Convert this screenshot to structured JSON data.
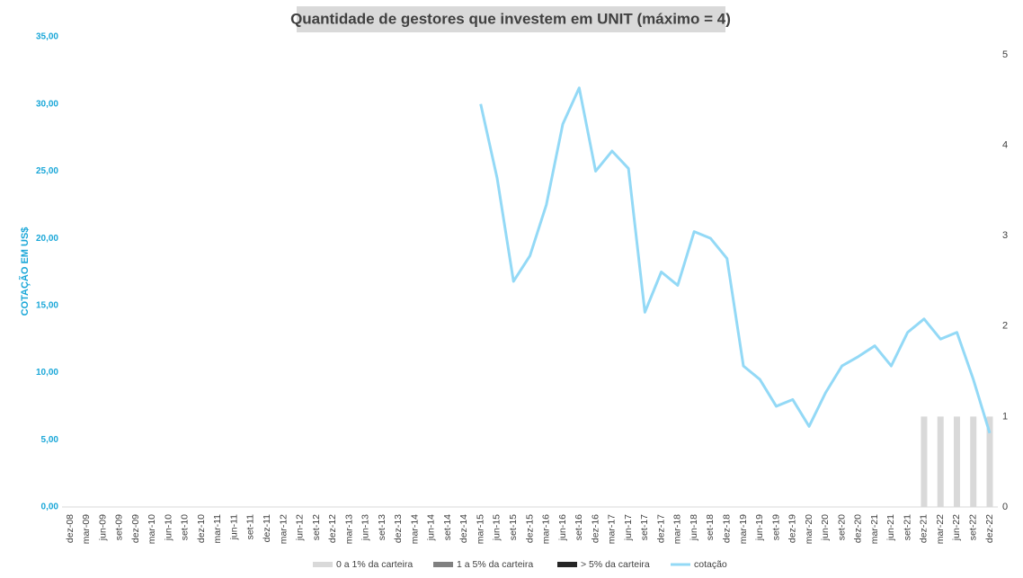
{
  "chart_data": {
    "type": "bar",
    "title": "Quantidade de gestores que investem em UNIT (máximo = 4)",
    "y_label": "COTAÇÃO EM US$",
    "categories": [
      "dez-08",
      "mar-09",
      "jun-09",
      "set-09",
      "dez-09",
      "mar-10",
      "jun-10",
      "set-10",
      "dez-10",
      "mar-11",
      "jun-11",
      "set-11",
      "dez-11",
      "mar-12",
      "jun-12",
      "set-12",
      "dez-12",
      "mar-13",
      "jun-13",
      "set-13",
      "dez-13",
      "mar-14",
      "jun-14",
      "set-14",
      "dez-14",
      "mar-15",
      "jun-15",
      "set-15",
      "dez-15",
      "mar-16",
      "jun-16",
      "set-16",
      "dez-16",
      "mar-17",
      "jun-17",
      "set-17",
      "dez-17",
      "mar-18",
      "jun-18",
      "set-18",
      "dez-18",
      "mar-19",
      "jun-19",
      "set-19",
      "dez-19",
      "mar-20",
      "jun-20",
      "set-20",
      "dez-20",
      "mar-21",
      "jun-21",
      "set-21",
      "dez-21",
      "mar-22",
      "jun-22",
      "set-22",
      "dez-22"
    ],
    "series": [
      {
        "name": "0 a 1% da carteira",
        "color": "#d9d9d9",
        "axis": "y2",
        "values": [
          null,
          null,
          null,
          null,
          null,
          null,
          null,
          null,
          null,
          null,
          null,
          null,
          null,
          null,
          null,
          null,
          null,
          null,
          null,
          null,
          null,
          null,
          null,
          null,
          null,
          null,
          null,
          null,
          null,
          null,
          null,
          null,
          null,
          null,
          null,
          null,
          null,
          null,
          null,
          null,
          null,
          null,
          null,
          null,
          null,
          null,
          null,
          null,
          null,
          null,
          null,
          null,
          1,
          1,
          1,
          1,
          1
        ]
      },
      {
        "name": "1 a 5% da carteira",
        "color": "#808080",
        "axis": "y2",
        "values": [
          null,
          null,
          null,
          null,
          null,
          null,
          null,
          null,
          null,
          null,
          null,
          null,
          null,
          null,
          null,
          null,
          null,
          null,
          null,
          null,
          null,
          null,
          null,
          null,
          null,
          null,
          null,
          null,
          null,
          null,
          null,
          null,
          null,
          null,
          null,
          null,
          null,
          null,
          null,
          null,
          null,
          null,
          null,
          null,
          null,
          null,
          null,
          null,
          null,
          null,
          null,
          null,
          null,
          null,
          null,
          null,
          null
        ]
      },
      {
        "name": "> 5% da carteira",
        "color": "#262626",
        "axis": "y2",
        "values": [
          null,
          null,
          null,
          null,
          null,
          null,
          null,
          null,
          null,
          null,
          null,
          null,
          null,
          null,
          null,
          null,
          null,
          null,
          null,
          null,
          null,
          null,
          null,
          null,
          null,
          null,
          null,
          null,
          null,
          null,
          null,
          null,
          null,
          null,
          null,
          null,
          null,
          null,
          null,
          null,
          null,
          null,
          null,
          null,
          null,
          null,
          null,
          null,
          null,
          null,
          null,
          null,
          null,
          null,
          null,
          null,
          null
        ]
      },
      {
        "name": "cotação",
        "color": "#93d9f6",
        "type": "line",
        "values": [
          null,
          null,
          null,
          null,
          null,
          null,
          null,
          null,
          null,
          null,
          null,
          null,
          null,
          null,
          null,
          null,
          null,
          null,
          null,
          null,
          null,
          null,
          null,
          null,
          null,
          30.0,
          24.5,
          16.8,
          18.7,
          22.5,
          28.5,
          31.2,
          25.0,
          26.5,
          25.2,
          14.5,
          17.5,
          16.5,
          20.5,
          20.0,
          18.5,
          10.5,
          9.5,
          7.5,
          8.0,
          6.0,
          8.5,
          10.5,
          11.2,
          12.0,
          10.5,
          13.0,
          14.0,
          12.5,
          13.0,
          9.5,
          5.5
        ]
      }
    ],
    "ylim": [
      0,
      35
    ],
    "yticks": [
      {
        "value": 0,
        "label": "0,00"
      },
      {
        "value": 5,
        "label": "5,00"
      },
      {
        "value": 10,
        "label": "10,00"
      },
      {
        "value": 15,
        "label": "15,00"
      },
      {
        "value": 20,
        "label": "20,00"
      },
      {
        "value": 25,
        "label": "25,00"
      },
      {
        "value": 30,
        "label": "30,00"
      },
      {
        "value": 35,
        "label": "35,00"
      }
    ],
    "y2lim": [
      0,
      5
    ],
    "y2ticks": [
      0,
      1,
      2,
      3,
      4,
      5
    ],
    "legend": "bottom"
  }
}
